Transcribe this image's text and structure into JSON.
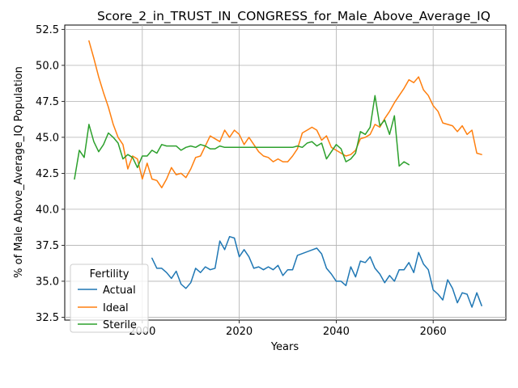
{
  "chart_data": {
    "type": "line",
    "title": "Score_2_in_TRUST_IN_CONGRESS_for_Male_Above_Average_IQ",
    "xlabel": "Years",
    "ylabel": "% of Male Above_Average_IQ Population",
    "xlim": [
      1984,
      2075
    ],
    "ylim": [
      32.3,
      52.8
    ],
    "xticks": [
      2000,
      2020,
      2040,
      2060
    ],
    "xtick_labels": [
      "2000",
      "2020",
      "2040",
      "2060"
    ],
    "yticks": [
      32.5,
      35.0,
      37.5,
      40.0,
      42.5,
      45.0,
      47.5,
      50.0,
      52.5
    ],
    "ytick_labels": [
      "32.5",
      "35.0",
      "37.5",
      "40.0",
      "42.5",
      "45.0",
      "47.5",
      "50.0",
      "52.5"
    ],
    "grid": true,
    "legend": {
      "title": "Fertility",
      "placement": "lower-left"
    },
    "series": [
      {
        "name": "Actual",
        "color": "#1f77b4",
        "x": [
          2002,
          2003,
          2004,
          2005,
          2006,
          2007,
          2008,
          2009,
          2010,
          2011,
          2012,
          2013,
          2014,
          2015,
          2016,
          2017,
          2018,
          2019,
          2020,
          2021,
          2022,
          2023,
          2024,
          2025,
          2026,
          2027,
          2028,
          2029,
          2030,
          2031,
          2032,
          2036,
          2037,
          2038,
          2039,
          2040,
          2041,
          2042,
          2043,
          2044,
          2045,
          2046,
          2047,
          2048,
          2049,
          2050,
          2051,
          2052,
          2053,
          2054,
          2055,
          2056,
          2057,
          2058,
          2059,
          2060,
          2061,
          2062,
          2063,
          2064,
          2065,
          2066,
          2067,
          2068,
          2069,
          2070
        ],
        "y": [
          36.6,
          35.9,
          35.9,
          35.6,
          35.2,
          35.7,
          34.8,
          34.5,
          34.9,
          35.9,
          35.6,
          36.0,
          35.8,
          35.9,
          37.8,
          37.2,
          38.1,
          38.0,
          36.7,
          37.2,
          36.7,
          35.9,
          36.0,
          35.8,
          36.0,
          35.8,
          36.1,
          35.4,
          35.8,
          35.8,
          36.8,
          37.3,
          36.9,
          35.9,
          35.5,
          35.0,
          35.0,
          34.7,
          36.0,
          35.3,
          36.4,
          36.3,
          36.7,
          35.9,
          35.5,
          34.9,
          35.4,
          35.0,
          35.8,
          35.8,
          36.3,
          35.6,
          37.0,
          36.2,
          35.8,
          34.4,
          34.1,
          33.7,
          35.1,
          34.5,
          33.5,
          34.2,
          34.1,
          33.2,
          34.2,
          33.3
        ]
      },
      {
        "name": "Ideal",
        "color": "#ff7f0e",
        "x": [
          1989,
          1990,
          1991,
          1992,
          1993,
          1994,
          1995,
          1996,
          1997,
          1998,
          1999,
          2000,
          2001,
          2002,
          2003,
          2004,
          2005,
          2006,
          2007,
          2008,
          2009,
          2010,
          2011,
          2012,
          2013,
          2014,
          2015,
          2016,
          2017,
          2018,
          2019,
          2020,
          2021,
          2022,
          2023,
          2024,
          2025,
          2026,
          2027,
          2028,
          2029,
          2030,
          2031,
          2032,
          2033,
          2034,
          2035,
          2036,
          2037,
          2038,
          2039,
          2040,
          2041,
          2042,
          2043,
          2044,
          2045,
          2046,
          2047,
          2048,
          2049,
          2050,
          2051,
          2052,
          2053,
          2054,
          2055,
          2056,
          2057,
          2058,
          2059,
          2060,
          2061,
          2062,
          2063,
          2064,
          2065,
          2066,
          2067,
          2068,
          2069,
          2070
        ],
        "y": [
          51.7,
          50.5,
          49.2,
          48.1,
          47.1,
          45.9,
          45.0,
          44.5,
          42.8,
          43.7,
          43.5,
          42.1,
          43.2,
          42.1,
          42.0,
          41.5,
          42.1,
          42.9,
          42.4,
          42.5,
          42.2,
          42.8,
          43.6,
          43.7,
          44.4,
          45.1,
          44.9,
          44.7,
          45.5,
          45.0,
          45.5,
          45.2,
          44.5,
          45.0,
          44.5,
          44.0,
          43.7,
          43.6,
          43.3,
          43.5,
          43.3,
          43.3,
          43.7,
          44.2,
          45.3,
          45.5,
          45.7,
          45.5,
          44.8,
          45.1,
          44.3,
          44.1,
          43.9,
          43.7,
          43.8,
          44.1,
          44.9,
          45.0,
          45.2,
          45.9,
          45.7,
          46.3,
          46.8,
          47.4,
          47.9,
          48.4,
          49.0,
          48.8,
          49.2,
          48.3,
          47.9,
          47.2,
          46.8,
          46.0,
          45.9,
          45.8,
          45.4,
          45.8,
          45.2,
          45.5,
          43.9,
          43.8
        ]
      },
      {
        "name": "Sterile",
        "color": "#2ca02c",
        "x": [
          1986,
          1987,
          1988,
          1989,
          1990,
          1991,
          1992,
          1993,
          1994,
          1995,
          1996,
          1997,
          1998,
          1999,
          2000,
          2001,
          2002,
          2003,
          2004,
          2005,
          2006,
          2007,
          2008,
          2009,
          2010,
          2011,
          2012,
          2013,
          2014,
          2015,
          2016,
          2017,
          2018,
          2019,
          2020,
          2021,
          2022,
          2023,
          2024,
          2025,
          2026,
          2027,
          2028,
          2029,
          2030,
          2031,
          2032,
          2033,
          2034,
          2035,
          2036,
          2037,
          2038,
          2039,
          2040,
          2041,
          2042,
          2043,
          2044,
          2045,
          2046,
          2047,
          2048,
          2049,
          2050,
          2051,
          2052,
          2053,
          2054,
          2055
        ],
        "y": [
          42.1,
          44.1,
          43.6,
          45.9,
          44.7,
          44.0,
          44.5,
          45.3,
          45.0,
          44.6,
          43.5,
          43.8,
          43.6,
          42.9,
          43.7,
          43.7,
          44.1,
          43.9,
          44.5,
          44.4,
          44.4,
          44.4,
          44.1,
          44.3,
          44.4,
          44.3,
          44.5,
          44.4,
          44.2,
          44.2,
          44.4,
          44.3,
          44.3,
          44.3,
          44.3,
          44.3,
          44.3,
          44.3,
          44.3,
          44.3,
          44.3,
          44.3,
          44.3,
          44.3,
          44.3,
          44.3,
          44.4,
          44.3,
          44.6,
          44.7,
          44.4,
          44.6,
          43.5,
          44.0,
          44.5,
          44.2,
          43.3,
          43.5,
          43.9,
          45.4,
          45.2,
          45.7,
          47.9,
          45.8,
          46.2,
          45.2,
          46.5,
          43.0,
          43.3,
          43.1
        ]
      }
    ]
  }
}
